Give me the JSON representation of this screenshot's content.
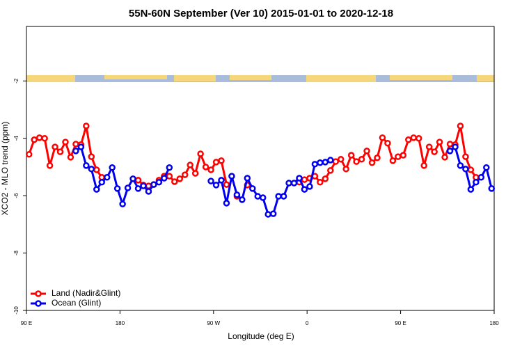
{
  "chart_data": {
    "type": "line",
    "title": "55N-60N September (Ver 10)   2015-01-01 to 2020-12-18",
    "xlabel": "Longitude (deg E)",
    "ylabel": "XCO2 - MLO trend (ppm)",
    "xlim": [
      90,
      540
    ],
    "ylim": [
      -10,
      -0.1
    ],
    "xticks": [
      {
        "value": 90,
        "label": "90 E"
      },
      180,
      {
        "value": 270,
        "label": "90 W"
      },
      {
        "value": 360,
        "label": "0"
      },
      {
        "value": 450,
        "label": "90 E"
      },
      {
        "value": 540,
        "label": "180"
      }
    ],
    "yticks": [
      -2,
      -4,
      -6,
      -8,
      -10
    ],
    "legend": "lower left",
    "x": [
      92.5,
      97.5,
      102.5,
      107.5,
      112.5,
      117.5,
      122.5,
      127.5,
      132.5,
      137.5,
      142.5,
      147.5,
      152.5,
      157.5,
      162.5,
      167.5,
      172.5,
      177.5,
      182.5,
      187.5,
      192.5,
      197.5,
      202.5,
      207.5,
      212.5,
      217.5,
      222.5,
      227.5,
      232.5,
      237.5,
      242.5,
      247.5,
      252.5,
      257.5,
      262.5,
      267.5,
      272.5,
      277.5,
      282.5,
      287.5,
      292.5,
      297.5,
      302.5,
      307.5,
      312.5,
      317.5,
      322.5,
      327.5,
      332.5,
      337.5,
      342.5,
      347.5,
      352.5,
      357.5,
      362.5,
      367.5,
      372.5,
      377.5,
      382.5,
      387.5,
      392.5,
      397.5,
      402.5,
      407.5,
      412.5,
      417.5,
      422.5,
      427.5,
      432.5,
      437.5,
      442.5,
      447.5,
      452.5,
      457.5,
      462.5,
      467.5,
      472.5,
      477.5,
      482.5,
      487.5,
      492.5,
      497.5,
      502.5,
      507.5,
      512.5,
      517.5,
      522.5,
      527.5,
      532.5,
      537.5
    ],
    "series": [
      {
        "name": "Land (Nadir&Glint)",
        "color": "#ff0000",
        "values": [
          -4.56,
          -4.05,
          -3.98,
          -4.0,
          -4.95,
          -4.3,
          -4.47,
          -4.13,
          -4.66,
          -4.2,
          -4.22,
          -3.57,
          -4.64,
          -5.1,
          -5.36,
          null,
          null,
          null,
          null,
          null,
          null,
          -5.46,
          -5.63,
          -5.66,
          -5.61,
          -5.46,
          -5.32,
          -5.32,
          -5.51,
          -5.41,
          -5.27,
          -4.93,
          -5.22,
          -4.54,
          -5.0,
          -5.1,
          -4.83,
          -4.78,
          -5.61,
          null,
          -6.02,
          null,
          -5.63,
          null,
          null,
          null,
          null,
          null,
          null,
          null,
          null,
          null,
          -5.53,
          -5.44,
          -5.39,
          -5.32,
          -5.53,
          -5.41,
          -5.12,
          -4.81,
          -4.73,
          -5.07,
          -4.59,
          -4.81,
          -4.73,
          -4.44,
          -4.85,
          -4.68,
          -3.98,
          -4.17,
          -4.78,
          -4.64,
          -4.59,
          -4.05,
          -3.98,
          -4.0,
          -4.95,
          -4.3,
          -4.47,
          -4.13,
          -4.66,
          -4.2,
          -4.22,
          -3.57,
          -4.64,
          -5.1,
          -5.36,
          null,
          null,
          null
        ]
      },
      {
        "name": "Ocean (Glint)",
        "color": "#0000ee",
        "values": [
          null,
          null,
          null,
          null,
          null,
          null,
          null,
          null,
          null,
          -4.44,
          -4.3,
          -4.95,
          -5.07,
          -5.78,
          -5.53,
          -5.36,
          -5.02,
          -5.75,
          -6.29,
          -5.73,
          -5.41,
          -5.75,
          -5.66,
          -5.85,
          -5.61,
          -5.53,
          -5.39,
          -5.02,
          null,
          null,
          null,
          null,
          null,
          null,
          null,
          -5.49,
          -5.63,
          -5.46,
          -6.26,
          -5.32,
          -5.97,
          -6.14,
          -5.39,
          -5.75,
          -6.02,
          -6.07,
          -6.65,
          -6.63,
          -6.02,
          -6.02,
          -5.56,
          -5.56,
          -5.39,
          -5.78,
          -5.68,
          -4.9,
          -4.85,
          -4.83,
          -4.76,
          null,
          null,
          null,
          null,
          null,
          null,
          null,
          null,
          null,
          null,
          null,
          null,
          null,
          null,
          null,
          null,
          null,
          null,
          null,
          null,
          null,
          null,
          -4.44,
          -4.3,
          -4.95,
          -5.07,
          -5.78,
          -5.53,
          -5.36,
          -5.02,
          -5.75
        ]
      }
    ]
  }
}
